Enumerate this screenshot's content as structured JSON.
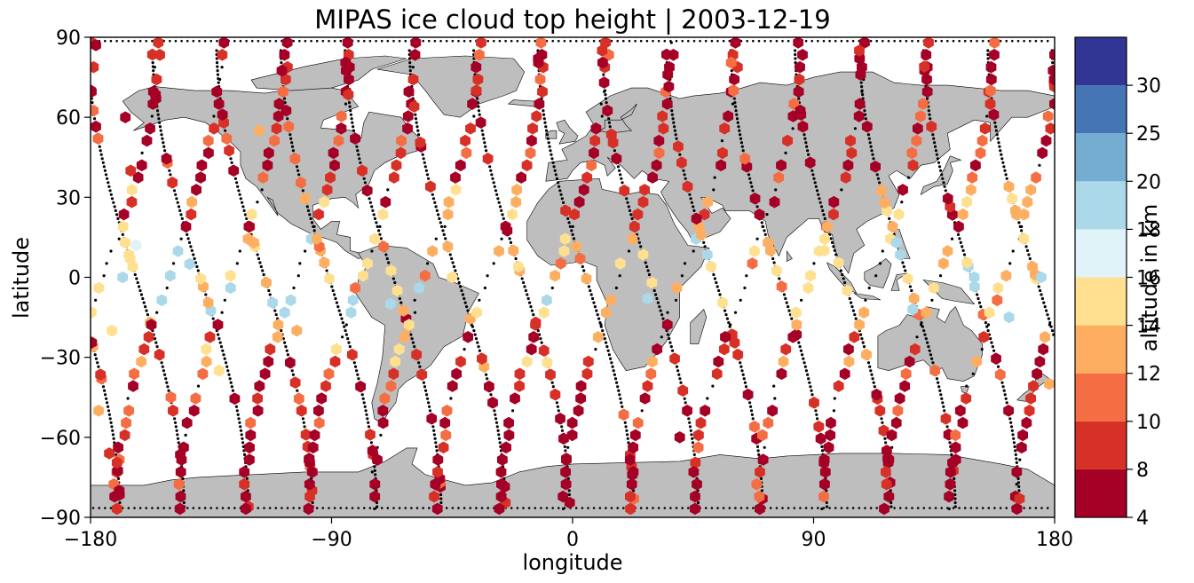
{
  "chart_data": {
    "type": "scatter",
    "title": "MIPAS ice cloud top height | 2003-12-19",
    "xlabel": "longitude",
    "ylabel": "latitude",
    "xlim": [
      -180,
      180
    ],
    "ylim": [
      -90,
      90
    ],
    "xticks": [
      -180,
      -90,
      0,
      90,
      180
    ],
    "yticks": [
      -90,
      -60,
      -30,
      0,
      30,
      60,
      90
    ],
    "xtick_labels": [
      "−180",
      "−90",
      "0",
      "90",
      "180"
    ],
    "ytick_labels": [
      "−90",
      "−60",
      "−30",
      "0",
      "30",
      "60",
      "90"
    ],
    "grid": false,
    "projection": "PlateCarree",
    "land_color": "#bebebe",
    "colorbar": {
      "label": "altitude in km",
      "boundaries": [
        4,
        8,
        10,
        12,
        14,
        16,
        18,
        20,
        25,
        30
      ],
      "tick_labels": [
        "4",
        "8",
        "10",
        "12",
        "14",
        "16",
        "18",
        "20",
        "25",
        "30"
      ],
      "colors": [
        "#a50026",
        "#d73027",
        "#f46d43",
        "#fdae61",
        "#fee090",
        "#e0f3f8",
        "#abd9e9",
        "#74add1",
        "#4575b4",
        "#313695"
      ]
    },
    "marker": "hexagon",
    "track_marker": "black dots (no cloud detected)",
    "orbit_tracks_description": "descending and ascending satellite orbit tracks crossing the globe roughly every 24 degrees longitude",
    "sample_points": [
      {
        "lon": -178,
        "lat": 87,
        "alt": 6
      },
      {
        "lon": -167,
        "lat": 60,
        "alt": 6
      },
      {
        "lon": -165,
        "lat": 40,
        "alt": 8
      },
      {
        "lon": -163,
        "lat": 12,
        "alt": 17
      },
      {
        "lon": -168,
        "lat": 0,
        "alt": 19
      },
      {
        "lon": -172,
        "lat": -20,
        "alt": 15
      },
      {
        "lon": -177,
        "lat": -50,
        "alt": 12
      },
      {
        "lon": -173,
        "lat": -66,
        "alt": 9
      },
      {
        "lon": -150,
        "lat": -45,
        "alt": 11
      },
      {
        "lon": -143,
        "lat": 5,
        "alt": 18
      },
      {
        "lon": -132,
        "lat": -35,
        "alt": 14
      },
      {
        "lon": -117,
        "lat": 55,
        "alt": 13
      },
      {
        "lon": -103,
        "lat": -20,
        "alt": 13
      },
      {
        "lon": -68,
        "lat": -10,
        "alt": 19
      },
      {
        "lon": -45,
        "lat": 0,
        "alt": 15
      },
      {
        "lon": 28,
        "lat": -8,
        "alt": 19
      },
      {
        "lon": 40,
        "lat": -60,
        "alt": 6
      },
      {
        "lon": 94,
        "lat": 10,
        "alt": 15
      },
      {
        "lon": 127,
        "lat": -12,
        "alt": 19
      },
      {
        "lon": 150,
        "lat": 0,
        "alt": 19
      },
      {
        "lon": 163,
        "lat": -15,
        "alt": 19
      },
      {
        "lon": 175,
        "lat": 0,
        "alt": 19
      },
      {
        "lon": 178,
        "lat": -40,
        "alt": 13
      }
    ]
  }
}
